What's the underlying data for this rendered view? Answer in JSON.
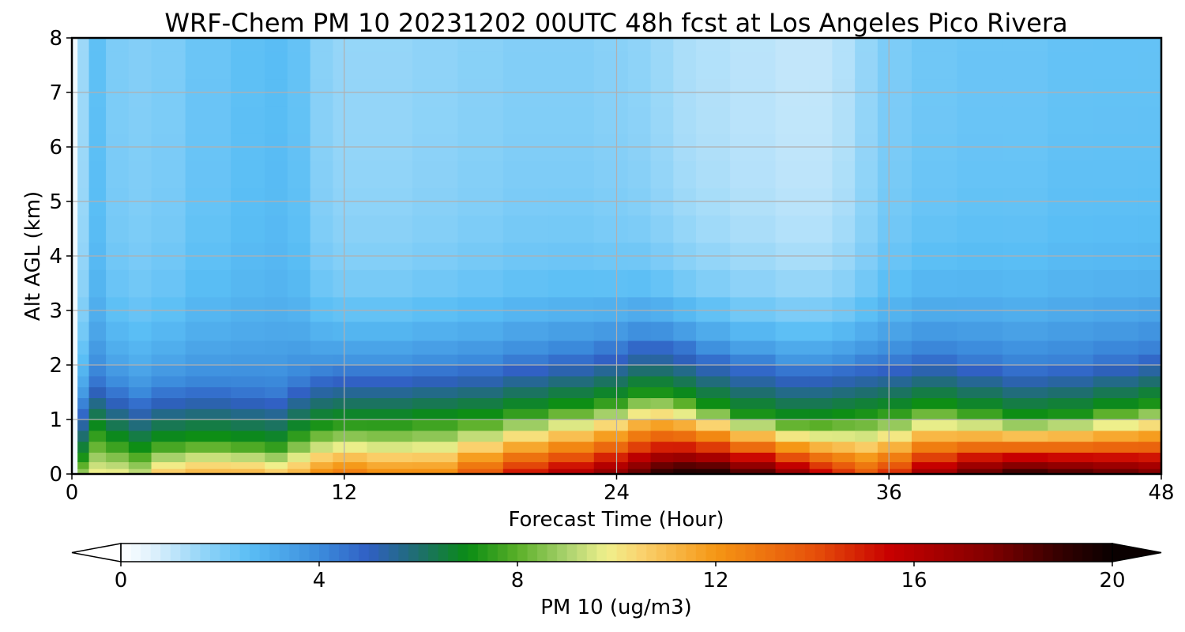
{
  "chart_data": {
    "type": "heatmap",
    "title": "WRF-Chem PM 10  20231202 00UTC 48h fcst at Los Angeles Pico Rivera",
    "xlabel": "Forecast Time (Hour)",
    "ylabel": "Alt AGL (km)",
    "xlim": [
      0,
      48
    ],
    "ylim": [
      0,
      8
    ],
    "x_ticks": [
      "0",
      "12",
      "24",
      "36",
      "48"
    ],
    "y_ticks": [
      "0",
      "1",
      "2",
      "3",
      "4",
      "5",
      "6",
      "7",
      "8"
    ],
    "grid": true,
    "colorbar": {
      "label": "PM 10  (ug/m3)",
      "ticks": [
        "0",
        "4",
        "8",
        "12",
        "16",
        "20"
      ],
      "range": [
        0,
        20
      ],
      "extend": "both",
      "orientation": "horizontal",
      "placement": "bottom"
    },
    "x_hours": [
      0,
      0.5,
      1,
      2,
      3,
      4,
      6,
      8,
      9,
      10,
      11,
      12,
      14,
      16,
      18,
      20,
      22,
      24,
      25,
      26,
      27,
      28,
      30,
      32,
      33,
      34,
      35,
      36,
      38,
      40,
      42,
      44,
      46,
      48
    ],
    "levels_km": [
      0.05,
      0.15,
      0.3,
      0.5,
      0.7,
      0.9,
      1.1,
      1.3,
      1.5,
      1.7,
      1.9,
      2.1,
      2.3,
      2.6,
      3.0,
      3.5,
      4.0,
      4.5,
      5.0,
      5.5,
      6.0,
      6.5,
      7.0,
      7.5,
      8.0
    ],
    "layer_height_km": [
      0,
      0.3,
      0.8,
      0.6,
      0.45,
      0.6,
      0.65,
      0.6,
      0.55,
      0.75,
      0.9,
      0.95,
      0.95,
      1.0,
      1.05,
      1.15,
      1.25,
      1.35,
      1.5,
      1.5,
      1.4,
      1.25,
      1.1,
      1.0,
      1.0,
      1.05,
      1.1,
      1.15,
      1.25,
      1.15,
      1.05,
      1.1,
      1.2,
      1.3
    ],
    "surface_pm10": [
      4,
      9,
      10,
      10,
      9.5,
      11,
      11.5,
      11.5,
      11,
      11.5,
      12.5,
      13,
      12.5,
      12.5,
      14,
      15.5,
      16.5,
      17.5,
      18.5,
      19.5,
      20,
      20,
      19,
      17.5,
      16,
      15,
      14,
      15,
      17,
      18.5,
      19.5,
      19,
      18.5,
      18
    ],
    "aloft_pm10": [
      0.4,
      1.5,
      2.5,
      2.0,
      1.9,
      2.0,
      2.3,
      2.5,
      2.6,
      2.4,
      1.8,
      1.6,
      1.6,
      1.7,
      1.8,
      1.9,
      1.9,
      1.8,
      1.7,
      1.5,
      1.3,
      1.2,
      1.1,
      1.0,
      1.0,
      1.2,
      1.6,
      2.0,
      2.2,
      2.3,
      2.3,
      2.4,
      2.4,
      2.4
    ]
  }
}
